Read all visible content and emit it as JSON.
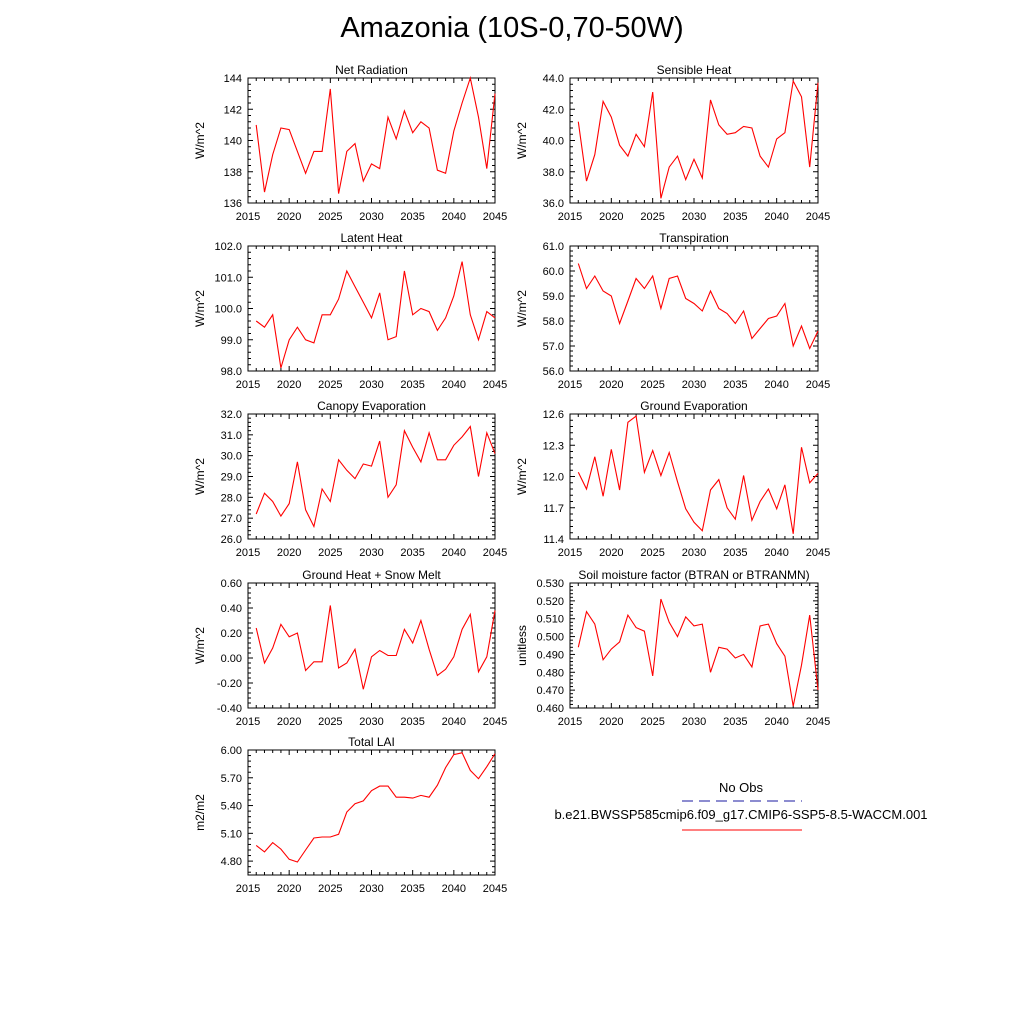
{
  "figure": {
    "title": "Amazonia (10S-0,70-50W)",
    "legend": {
      "obs_label": "No Obs",
      "obs_color": "#1a1aa0",
      "case_label": "b.e21.BWSSP585cmip6.f09_g17.CMIP6-SSP5-8.5-WACCM.001",
      "case_color": "#ff0000"
    }
  },
  "chart_data": [
    {
      "type": "line",
      "title": "Net Radiation",
      "xlabel": "",
      "ylabel": "W/m^2",
      "xlim": [
        2015,
        2045
      ],
      "ylim": [
        136,
        144
      ],
      "xticks": [
        "2015",
        "2020",
        "2025",
        "2030",
        "2035",
        "2040",
        "2045"
      ],
      "yticks": [
        "136",
        "138",
        "140",
        "142",
        "144"
      ],
      "series": [
        {
          "name": "b.e21.BWSSP585cmip6.f09_g17.CMIP6-SSP5-8.5-WACCM.001",
          "color": "#ff0000",
          "x": [
            2016,
            2017,
            2018,
            2019,
            2020,
            2021,
            2022,
            2023,
            2024,
            2025,
            2026,
            2027,
            2028,
            2029,
            2030,
            2031,
            2032,
            2033,
            2034,
            2035,
            2036,
            2037,
            2038,
            2039,
            2040,
            2041,
            2042,
            2043,
            2044,
            2045
          ],
          "values": [
            141.0,
            136.7,
            139.1,
            140.8,
            140.7,
            139.3,
            137.9,
            139.3,
            139.3,
            143.3,
            136.6,
            139.3,
            139.8,
            137.4,
            138.5,
            138.2,
            141.5,
            140.1,
            141.9,
            140.5,
            141.2,
            140.8,
            138.1,
            137.9,
            140.6,
            142.4,
            144.0,
            141.5,
            138.2,
            143.0
          ]
        }
      ]
    },
    {
      "type": "line",
      "title": "Sensible Heat",
      "xlabel": "",
      "ylabel": "W/m^2",
      "xlim": [
        2015,
        2045
      ],
      "ylim": [
        36,
        44
      ],
      "xticks": [
        "2015",
        "2020",
        "2025",
        "2030",
        "2035",
        "2040",
        "2045"
      ],
      "yticks": [
        "36.0",
        "38.0",
        "40.0",
        "42.0",
        "44.0"
      ],
      "series": [
        {
          "name": "b.e21.BWSSP585cmip6.f09_g17.CMIP6-SSP5-8.5-WACCM.001",
          "color": "#ff0000",
          "x": [
            2016,
            2017,
            2018,
            2019,
            2020,
            2021,
            2022,
            2023,
            2024,
            2025,
            2026,
            2027,
            2028,
            2029,
            2030,
            2031,
            2032,
            2033,
            2034,
            2035,
            2036,
            2037,
            2038,
            2039,
            2040,
            2041,
            2042,
            2043,
            2044,
            2045
          ],
          "values": [
            41.2,
            37.4,
            39.1,
            42.5,
            41.5,
            39.7,
            39.0,
            40.4,
            39.6,
            43.1,
            36.3,
            38.3,
            39.0,
            37.5,
            38.8,
            37.6,
            42.6,
            41.0,
            40.4,
            40.5,
            40.9,
            40.8,
            39.0,
            38.3,
            40.1,
            40.5,
            43.8,
            42.8,
            38.3,
            43.7
          ]
        }
      ]
    },
    {
      "type": "line",
      "title": "Latent Heat",
      "xlabel": "",
      "ylabel": "W/m^2",
      "xlim": [
        2015,
        2045
      ],
      "ylim": [
        98,
        102
      ],
      "xticks": [
        "2015",
        "2020",
        "2025",
        "2030",
        "2035",
        "2040",
        "2045"
      ],
      "yticks": [
        "98.0",
        "99.0",
        "100.0",
        "101.0",
        "102.0"
      ],
      "series": [
        {
          "name": "b.e21.BWSSP585cmip6.f09_g17.CMIP6-SSP5-8.5-WACCM.001",
          "color": "#ff0000",
          "x": [
            2016,
            2017,
            2018,
            2019,
            2020,
            2021,
            2022,
            2023,
            2024,
            2025,
            2026,
            2027,
            2028,
            2029,
            2030,
            2031,
            2032,
            2033,
            2034,
            2035,
            2036,
            2037,
            2038,
            2039,
            2040,
            2041,
            2042,
            2043,
            2044,
            2045
          ],
          "values": [
            99.6,
            99.4,
            99.8,
            98.1,
            99.0,
            99.4,
            99.0,
            98.9,
            99.8,
            99.8,
            100.3,
            101.2,
            100.7,
            100.2,
            99.7,
            100.5,
            99.0,
            99.1,
            101.2,
            99.8,
            100.0,
            99.9,
            99.3,
            99.7,
            100.4,
            101.5,
            99.8,
            99.0,
            99.9,
            99.7
          ]
        }
      ]
    },
    {
      "type": "line",
      "title": "Transpiration",
      "xlabel": "",
      "ylabel": "W/m^2",
      "xlim": [
        2015,
        2045
      ],
      "ylim": [
        56,
        61
      ],
      "xticks": [
        "2015",
        "2020",
        "2025",
        "2030",
        "2035",
        "2040",
        "2045"
      ],
      "yticks": [
        "56.0",
        "57.0",
        "58.0",
        "59.0",
        "60.0",
        "61.0"
      ],
      "series": [
        {
          "name": "b.e21.BWSSP585cmip6.f09_g17.CMIP6-SSP5-8.5-WACCM.001",
          "color": "#ff0000",
          "x": [
            2016,
            2017,
            2018,
            2019,
            2020,
            2021,
            2022,
            2023,
            2024,
            2025,
            2026,
            2027,
            2028,
            2029,
            2030,
            2031,
            2032,
            2033,
            2034,
            2035,
            2036,
            2037,
            2038,
            2039,
            2040,
            2041,
            2042,
            2043,
            2044,
            2045
          ],
          "values": [
            60.3,
            59.3,
            59.8,
            59.2,
            59.0,
            57.9,
            58.8,
            59.7,
            59.3,
            59.8,
            58.5,
            59.7,
            59.8,
            58.9,
            58.7,
            58.4,
            59.2,
            58.5,
            58.3,
            57.9,
            58.4,
            57.3,
            57.7,
            58.1,
            58.2,
            58.7,
            57.0,
            57.8,
            56.9,
            57.6
          ]
        }
      ]
    },
    {
      "type": "line",
      "title": "Canopy Evaporation",
      "xlabel": "",
      "ylabel": "W/m^2",
      "xlim": [
        2015,
        2045
      ],
      "ylim": [
        26,
        32
      ],
      "xticks": [
        "2015",
        "2020",
        "2025",
        "2030",
        "2035",
        "2040",
        "2045"
      ],
      "yticks": [
        "26.0",
        "27.0",
        "28.0",
        "29.0",
        "30.0",
        "31.0",
        "32.0"
      ],
      "series": [
        {
          "name": "b.e21.BWSSP585cmip6.f09_g17.CMIP6-SSP5-8.5-WACCM.001",
          "color": "#ff0000",
          "x": [
            2016,
            2017,
            2018,
            2019,
            2020,
            2021,
            2022,
            2023,
            2024,
            2025,
            2026,
            2027,
            2028,
            2029,
            2030,
            2031,
            2032,
            2033,
            2034,
            2035,
            2036,
            2037,
            2038,
            2039,
            2040,
            2041,
            2042,
            2043,
            2044,
            2045
          ],
          "values": [
            27.2,
            28.2,
            27.8,
            27.1,
            27.7,
            29.7,
            27.4,
            26.6,
            28.4,
            27.8,
            29.8,
            29.3,
            28.9,
            29.6,
            29.5,
            30.7,
            28.0,
            28.6,
            31.2,
            30.4,
            29.7,
            31.1,
            29.8,
            29.8,
            30.5,
            30.9,
            31.4,
            29.0,
            31.1,
            30.1
          ]
        }
      ]
    },
    {
      "type": "line",
      "title": "Ground Evaporation",
      "xlabel": "",
      "ylabel": "W/m^2",
      "xlim": [
        2015,
        2045
      ],
      "ylim": [
        11.4,
        12.6
      ],
      "xticks": [
        "2015",
        "2020",
        "2025",
        "2030",
        "2035",
        "2040",
        "2045"
      ],
      "yticks": [
        "11.4",
        "11.7",
        "12.0",
        "12.3",
        "12.6"
      ],
      "series": [
        {
          "name": "b.e21.BWSSP585cmip6.f09_g17.CMIP6-SSP5-8.5-WACCM.001",
          "color": "#ff0000",
          "x": [
            2016,
            2017,
            2018,
            2019,
            2020,
            2021,
            2022,
            2023,
            2024,
            2025,
            2026,
            2027,
            2028,
            2029,
            2030,
            2031,
            2032,
            2033,
            2034,
            2035,
            2036,
            2037,
            2038,
            2039,
            2040,
            2041,
            2042,
            2043,
            2044,
            2045
          ],
          "values": [
            12.04,
            11.88,
            12.19,
            11.81,
            12.26,
            11.87,
            12.52,
            12.58,
            12.04,
            12.25,
            12.01,
            12.23,
            11.95,
            11.69,
            11.56,
            11.48,
            11.87,
            11.97,
            11.7,
            11.59,
            12.01,
            11.58,
            11.76,
            11.88,
            11.69,
            11.92,
            11.45,
            12.28,
            11.94,
            12.03
          ]
        }
      ]
    },
    {
      "type": "line",
      "title": "Ground Heat + Snow Melt",
      "xlabel": "",
      "ylabel": "W/m^2",
      "xlim": [
        2015,
        2045
      ],
      "ylim": [
        -0.4,
        0.6
      ],
      "xticks": [
        "2015",
        "2020",
        "2025",
        "2030",
        "2035",
        "2040",
        "2045"
      ],
      "yticks": [
        "-0.40",
        "-0.20",
        "0.00",
        "0.20",
        "0.40",
        "0.60"
      ],
      "series": [
        {
          "name": "b.e21.BWSSP585cmip6.f09_g17.CMIP6-SSP5-8.5-WACCM.001",
          "color": "#ff0000",
          "x": [
            2016,
            2017,
            2018,
            2019,
            2020,
            2021,
            2022,
            2023,
            2024,
            2025,
            2026,
            2027,
            2028,
            2029,
            2030,
            2031,
            2032,
            2033,
            2034,
            2035,
            2036,
            2037,
            2038,
            2039,
            2040,
            2041,
            2042,
            2043,
            2044,
            2045
          ],
          "values": [
            0.24,
            -0.04,
            0.08,
            0.27,
            0.17,
            0.2,
            -0.1,
            -0.03,
            -0.03,
            0.42,
            -0.08,
            -0.04,
            0.07,
            -0.25,
            0.01,
            0.06,
            0.02,
            0.02,
            0.23,
            0.12,
            0.3,
            0.07,
            -0.14,
            -0.09,
            0.01,
            0.23,
            0.35,
            -0.11,
            0.01,
            0.38
          ]
        }
      ]
    },
    {
      "type": "line",
      "title": "Soil moisture factor (BTRAN or BTRANMN)",
      "xlabel": "",
      "ylabel": "unitless",
      "xlim": [
        2015,
        2045
      ],
      "ylim": [
        0.46,
        0.53
      ],
      "xticks": [
        "2015",
        "2020",
        "2025",
        "2030",
        "2035",
        "2040",
        "2045"
      ],
      "yticks": [
        "0.460",
        "0.470",
        "0.480",
        "0.490",
        "0.500",
        "0.510",
        "0.520",
        "0.530"
      ],
      "series": [
        {
          "name": "b.e21.BWSSP585cmip6.f09_g17.CMIP6-SSP5-8.5-WACCM.001",
          "color": "#ff0000",
          "x": [
            2016,
            2017,
            2018,
            2019,
            2020,
            2021,
            2022,
            2023,
            2024,
            2025,
            2026,
            2027,
            2028,
            2029,
            2030,
            2031,
            2032,
            2033,
            2034,
            2035,
            2036,
            2037,
            2038,
            2039,
            2040,
            2041,
            2042,
            2043,
            2044,
            2045
          ],
          "values": [
            0.494,
            0.514,
            0.507,
            0.487,
            0.493,
            0.497,
            0.512,
            0.505,
            0.503,
            0.478,
            0.521,
            0.508,
            0.5,
            0.511,
            0.506,
            0.507,
            0.48,
            0.494,
            0.493,
            0.488,
            0.49,
            0.483,
            0.506,
            0.507,
            0.496,
            0.489,
            0.461,
            0.484,
            0.512,
            0.47
          ]
        }
      ]
    },
    {
      "type": "line",
      "title": "Total LAI",
      "xlabel": "",
      "ylabel": "m2/m2",
      "xlim": [
        2015,
        2045
      ],
      "ylim": [
        4.65,
        6.0
      ],
      "xticks": [
        "2015",
        "2020",
        "2025",
        "2030",
        "2035",
        "2040",
        "2045"
      ],
      "yticks": [
        "4.80",
        "5.10",
        "5.40",
        "5.70",
        "6.00"
      ],
      "series": [
        {
          "name": "b.e21.BWSSP585cmip6.f09_g17.CMIP6-SSP5-8.5-WACCM.001",
          "color": "#ff0000",
          "x": [
            2016,
            2017,
            2018,
            2019,
            2020,
            2021,
            2022,
            2023,
            2024,
            2025,
            2026,
            2027,
            2028,
            2029,
            2030,
            2031,
            2032,
            2033,
            2034,
            2035,
            2036,
            2037,
            2038,
            2039,
            2040,
            2041,
            2042,
            2043,
            2044,
            2045
          ],
          "values": [
            4.97,
            4.9,
            5.0,
            4.93,
            4.82,
            4.79,
            4.92,
            5.05,
            5.06,
            5.06,
            5.09,
            5.33,
            5.42,
            5.45,
            5.56,
            5.61,
            5.61,
            5.49,
            5.49,
            5.48,
            5.51,
            5.49,
            5.62,
            5.81,
            5.95,
            5.97,
            5.78,
            5.69,
            5.82,
            5.96
          ]
        }
      ]
    }
  ]
}
